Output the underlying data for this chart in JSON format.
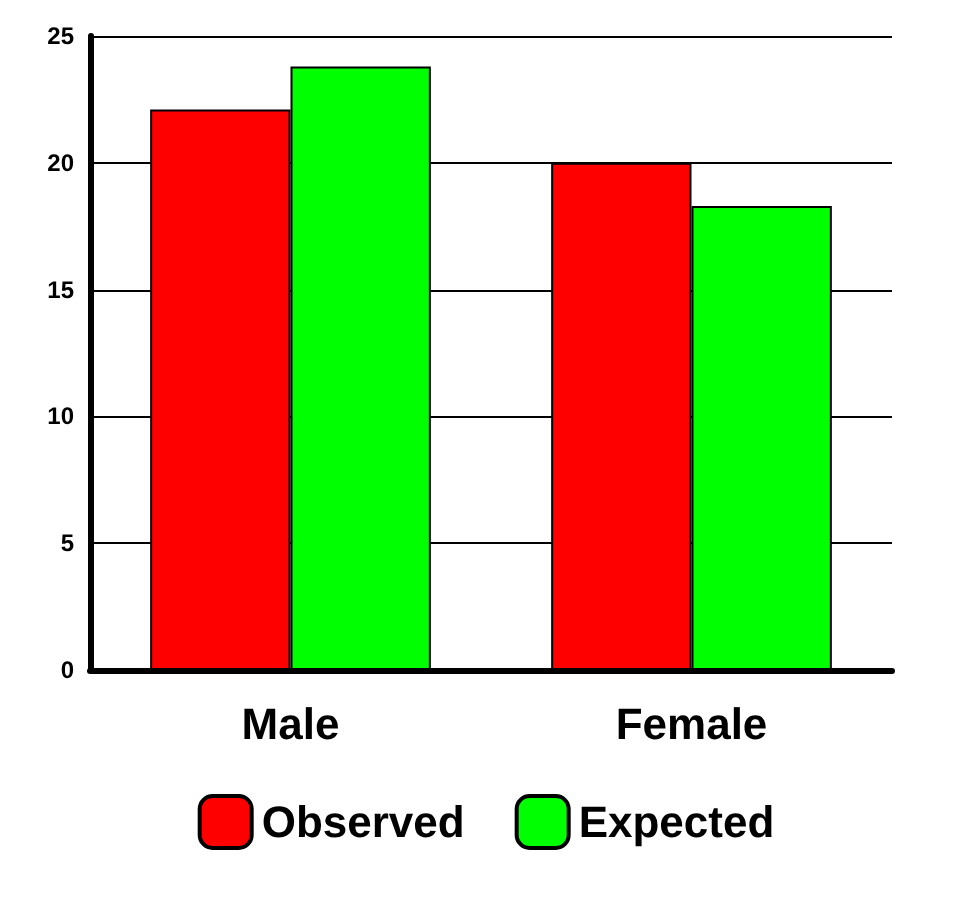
{
  "chart_data": {
    "type": "bar",
    "categories": [
      "Male",
      "Female"
    ],
    "series": [
      {
        "name": "Observed",
        "color": "#ff0000",
        "values": [
          22.1,
          20
        ]
      },
      {
        "name": "Expected",
        "color": "#00ff00",
        "values": [
          23.8,
          18.3
        ]
      }
    ],
    "ylim": [
      0,
      25
    ],
    "yticks": [
      0,
      5,
      10,
      15,
      20,
      25
    ],
    "grid": "y",
    "legend": "bottom"
  }
}
